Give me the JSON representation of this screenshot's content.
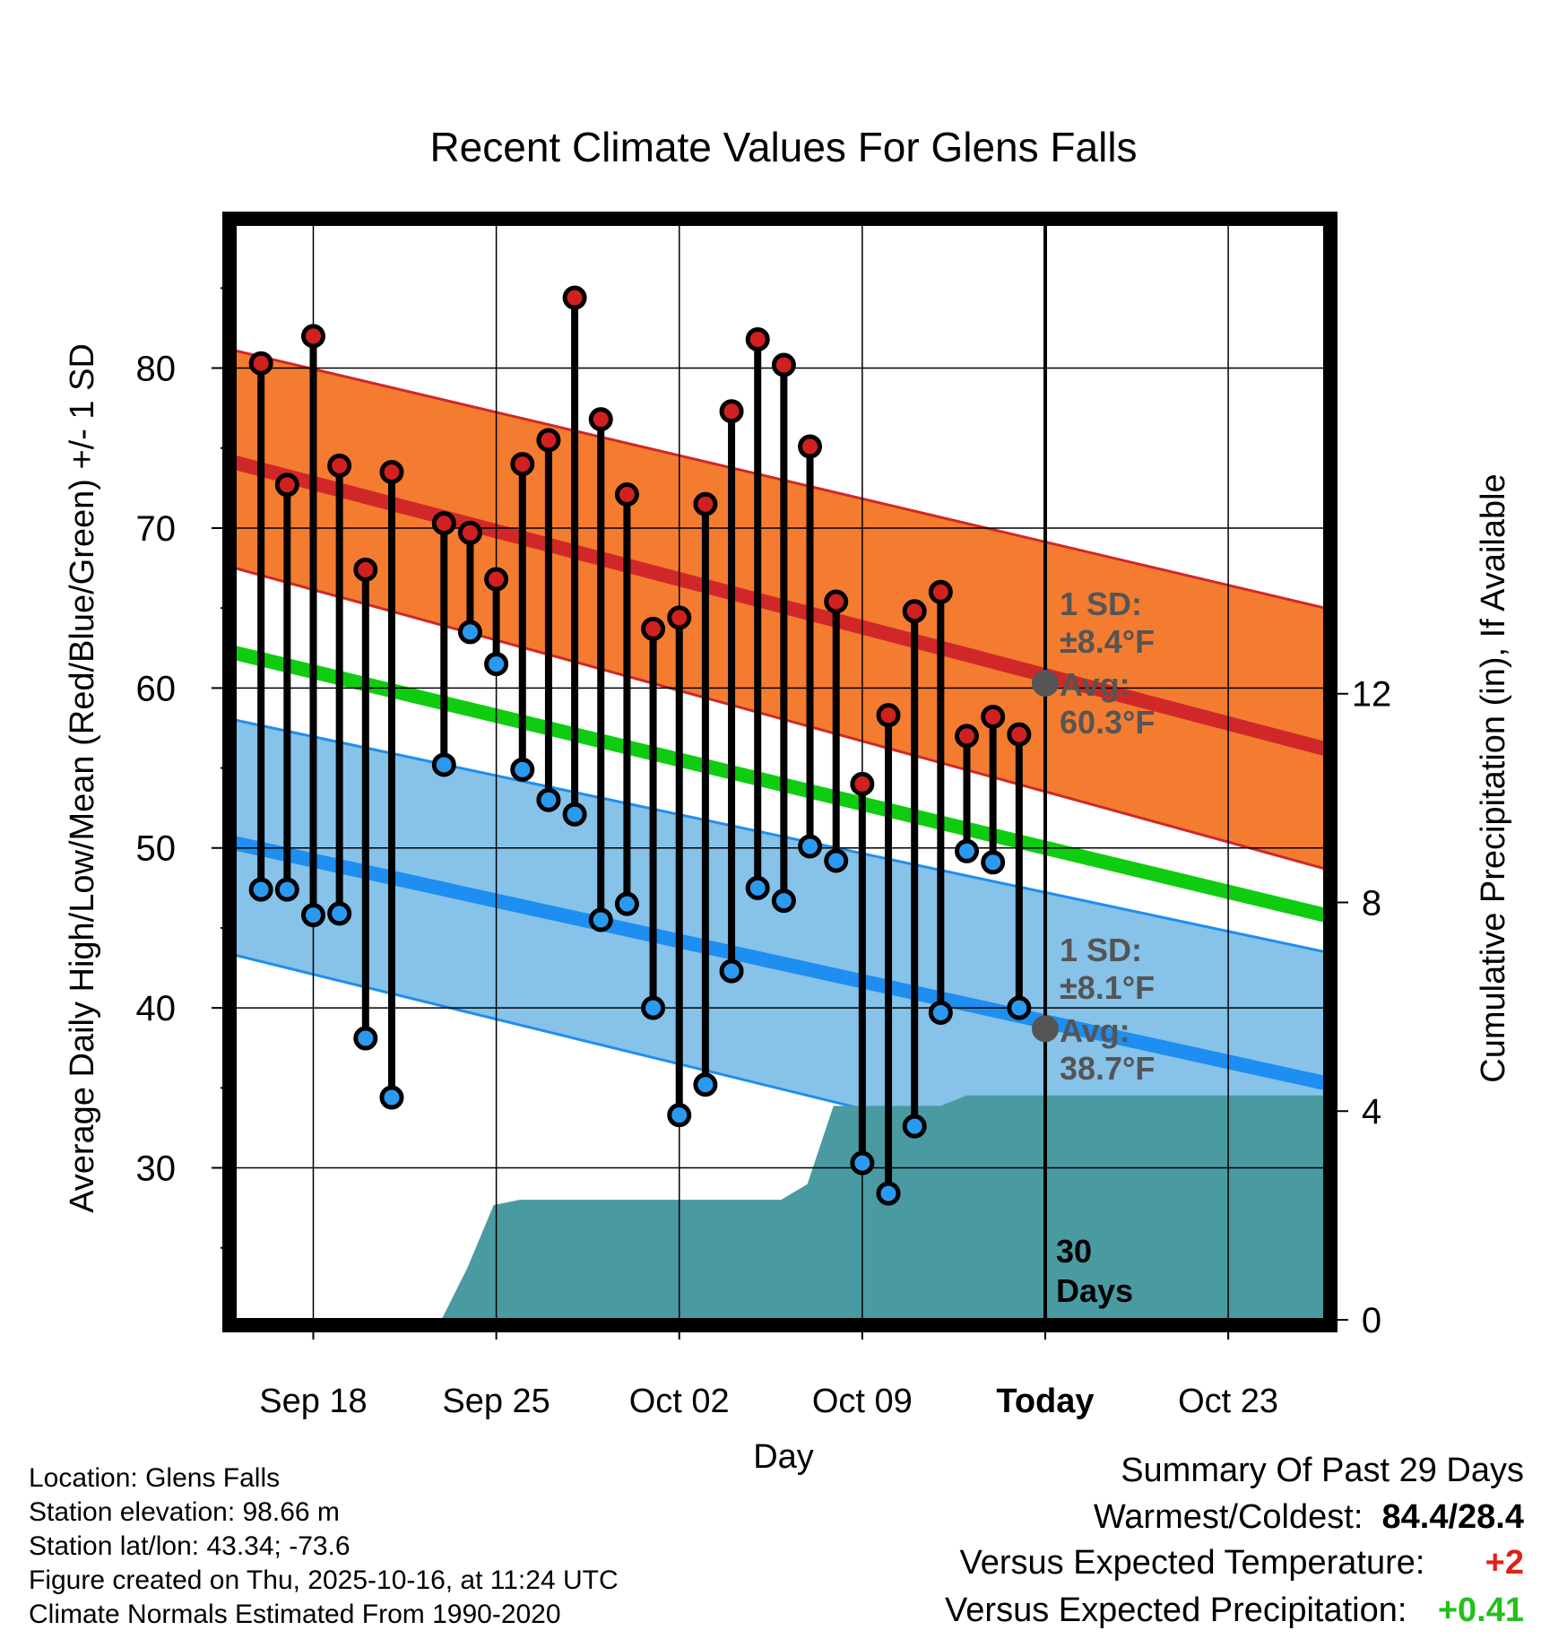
{
  "chart_data": {
    "type": "line",
    "title": "Recent Climate Values For Glens Falls",
    "xlabel": "Day",
    "ylabel": "Average Daily High/Low/Mean (Red/Blue/Green) +/- 1 SD",
    "y2label": "Cumulative Precipitation (in), If Available",
    "x_tick_labels": [
      "Sep 18",
      "Sep 25",
      "Oct 02",
      "Oct 09",
      "Today",
      "Oct 23"
    ],
    "x_tick_days": [
      3,
      10,
      17,
      24,
      31,
      38
    ],
    "xlim": [
      0,
      41.7
    ],
    "ylim": [
      20.5,
      89
    ],
    "y_ticks": [
      30,
      40,
      50,
      60,
      70,
      80
    ],
    "y2lim": [
      0,
      21
    ],
    "y2_ticks": [
      0,
      4,
      8,
      12
    ],
    "today_day": 31,
    "window_label": "30\nDays",
    "normal_high": {
      "start": 74.1,
      "end": 56.2,
      "sd_label": "1 SD:",
      "sd_value": "±8.4°F",
      "avg_label": "Avg:",
      "avg_value": "60.3°F",
      "today_value": 60.3
    },
    "normal_low": {
      "start": 50.3,
      "end": 35.3,
      "sd_label": "1 SD:",
      "sd_value": "±8.1°F",
      "avg_label": "Avg:",
      "avg_value": "38.7°F",
      "today_value": 38.7
    },
    "normal_mean": {
      "start": 62.2,
      "end": 45.8
    },
    "high_band": {
      "upper_start": 81.1,
      "upper_end": 65.0,
      "lower_start": 67.5,
      "lower_end": 48.7
    },
    "low_band": {
      "upper_start": 58.0,
      "upper_end": 43.5,
      "lower_start": 43.3,
      "lower_end": 26.6
    },
    "observations": [
      {
        "day": 1,
        "high": 80.3,
        "low": 47.4
      },
      {
        "day": 2,
        "high": 72.7,
        "low": 47.4
      },
      {
        "day": 3,
        "high": 82.0,
        "low": 45.8
      },
      {
        "day": 4,
        "high": 73.9,
        "low": 45.9
      },
      {
        "day": 5,
        "high": 67.4,
        "low": 38.1
      },
      {
        "day": 6,
        "high": 73.5,
        "low": 34.4
      },
      {
        "day": 8,
        "high": 70.3,
        "low": 55.2
      },
      {
        "day": 9,
        "high": 69.7,
        "low": 63.5
      },
      {
        "day": 10,
        "high": 66.8,
        "low": 61.5
      },
      {
        "day": 11,
        "high": 74.0,
        "low": 54.9
      },
      {
        "day": 12,
        "high": 75.5,
        "low": 53.0
      },
      {
        "day": 13,
        "high": 84.4,
        "low": 52.1
      },
      {
        "day": 14,
        "high": 76.8,
        "low": 45.5
      },
      {
        "day": 15,
        "high": 72.1,
        "low": 46.5
      },
      {
        "day": 16,
        "high": 63.7,
        "low": 40.0
      },
      {
        "day": 17,
        "high": 64.4,
        "low": 33.3
      },
      {
        "day": 18,
        "high": 71.5,
        "low": 35.2
      },
      {
        "day": 19,
        "high": 77.3,
        "low": 42.3
      },
      {
        "day": 20,
        "high": 81.8,
        "low": 47.5
      },
      {
        "day": 21,
        "high": 80.2,
        "low": 46.7
      },
      {
        "day": 22,
        "high": 75.1,
        "low": 50.1
      },
      {
        "day": 23,
        "high": 65.4,
        "low": 49.2
      },
      {
        "day": 24,
        "high": 54.0,
        "low": 30.3
      },
      {
        "day": 25,
        "high": 58.3,
        "low": 28.4
      },
      {
        "day": 26,
        "high": 64.8,
        "low": 32.6
      },
      {
        "day": 27,
        "high": 66.0,
        "low": 39.7
      },
      {
        "day": 28,
        "high": 57.0,
        "low": 49.8
      },
      {
        "day": 29,
        "high": 58.2,
        "low": 49.1
      },
      {
        "day": 30,
        "high": 57.1,
        "low": 40.0
      }
    ],
    "precip_cumulative": [
      {
        "day": 0,
        "value": 0
      },
      {
        "day": 7.9,
        "value": 0
      },
      {
        "day": 8.9,
        "value": 1.0
      },
      {
        "day": 9.9,
        "value": 2.2
      },
      {
        "day": 10.9,
        "value": 2.3
      },
      {
        "day": 20.9,
        "value": 2.3
      },
      {
        "day": 21.9,
        "value": 2.6
      },
      {
        "day": 22.9,
        "value": 4.1
      },
      {
        "day": 27.0,
        "value": 4.1
      },
      {
        "day": 28.0,
        "value": 4.3
      },
      {
        "day": 41.7,
        "value": 4.3
      }
    ]
  },
  "station_info": {
    "location": "Location: Glens Falls",
    "elevation": "Station elevation: 98.66 m",
    "latlon": "Station lat/lon: 43.34; -73.6",
    "created": "Figure created on Thu, 2025-10-16, at 11:24 UTC",
    "normals": "Climate Normals Estimated From 1990-2020"
  },
  "summary": {
    "title": "Summary Of Past 29 Days",
    "warm_cold_label": "Warmest/Coldest:",
    "warm_cold_value": "84.4/28.4",
    "temp_label": "Versus Expected Temperature:",
    "temp_value": "+2",
    "precip_label": "Versus Expected Precipitation:",
    "precip_value": "+0.41"
  },
  "colors": {
    "high_band": "#f47c30",
    "high_line": "#d02828",
    "low_band": "#87c2e8",
    "low_line": "#1e8ef0",
    "mean_line": "#10cc10",
    "precip": "#4a9aa2",
    "high_dot": "#d02020",
    "low_dot": "#2a9af0",
    "today_dot": "#555555",
    "annotation": "#555555"
  }
}
